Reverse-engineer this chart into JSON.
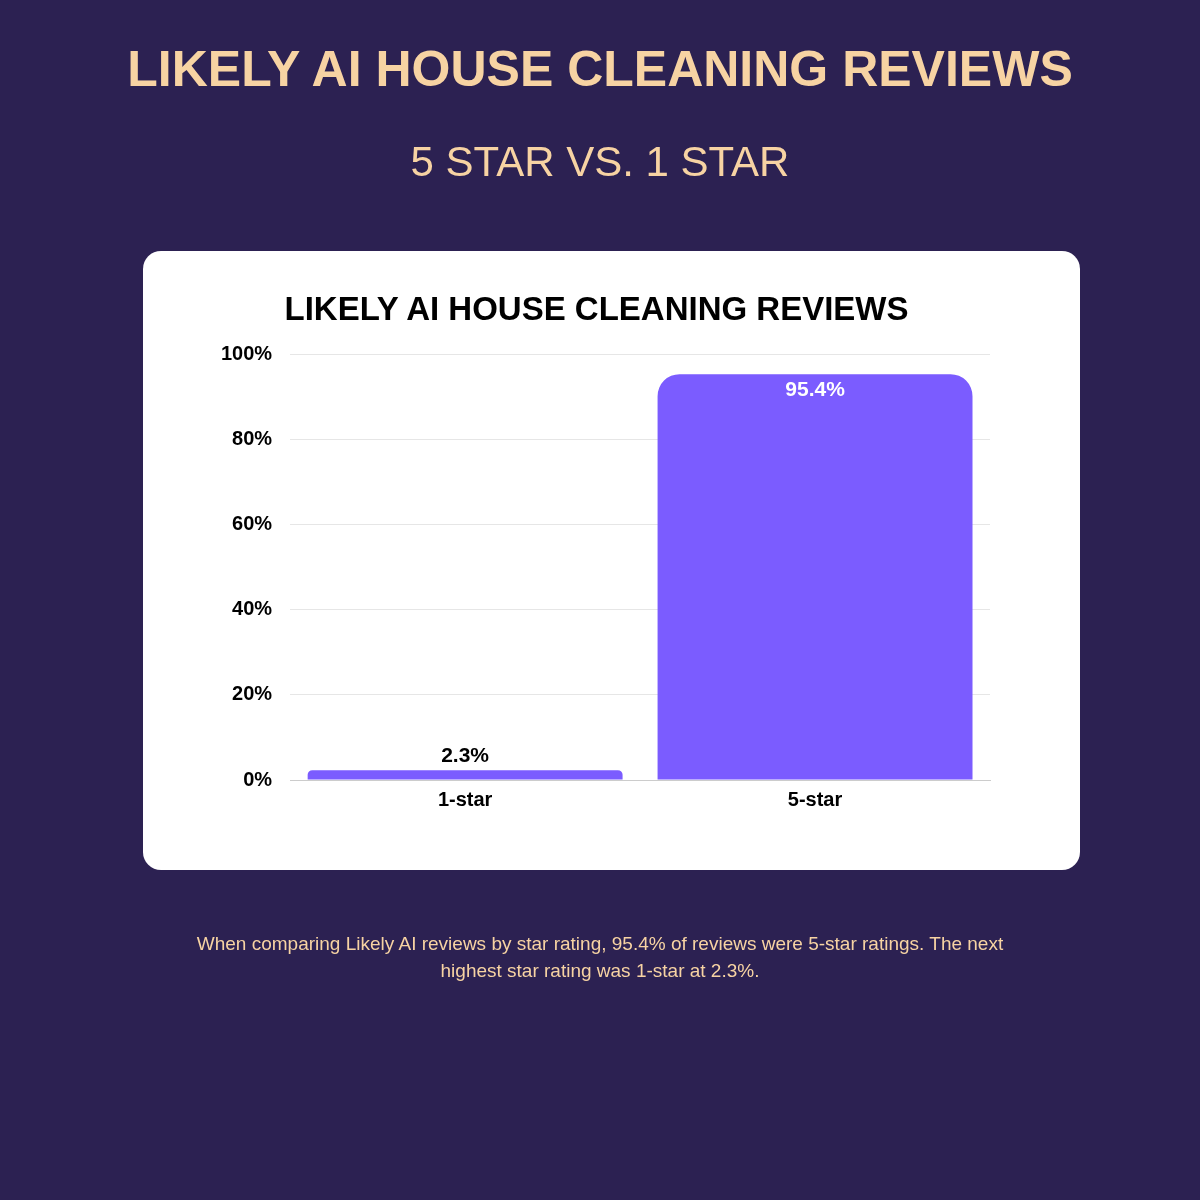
{
  "chart_data": {
    "type": "bar",
    "title": "LIKELY AI HOUSE CLEANING REVIEWS",
    "subtitle": "5 STAR VS. 1 STAR",
    "annotations": [
      "LIKELY AI HOUSE CLEANING REVIEWS",
      "When comparing Likely AI reviews by star rating, 95.4% of reviews were 5-star ratings. The next highest star rating was 1-star at 2.3%."
    ],
    "categories": [
      "1-star",
      "5-star"
    ],
    "values": [
      2.3,
      95.4
    ],
    "color": "#7b5cff",
    "ylim": [
      0,
      100
    ],
    "yticks": [
      {
        "value": 0,
        "label": "0%"
      },
      {
        "value": 20,
        "label": "20%"
      },
      {
        "value": 40,
        "label": "40%"
      },
      {
        "value": 60,
        "label": "60%"
      },
      {
        "value": 80,
        "label": "80%"
      },
      {
        "value": 100,
        "label": "100%"
      }
    ],
    "grid": "y",
    "legend": false,
    "data_labels": true,
    "value_labels": [
      "2.3%",
      "95.4%"
    ]
  }
}
